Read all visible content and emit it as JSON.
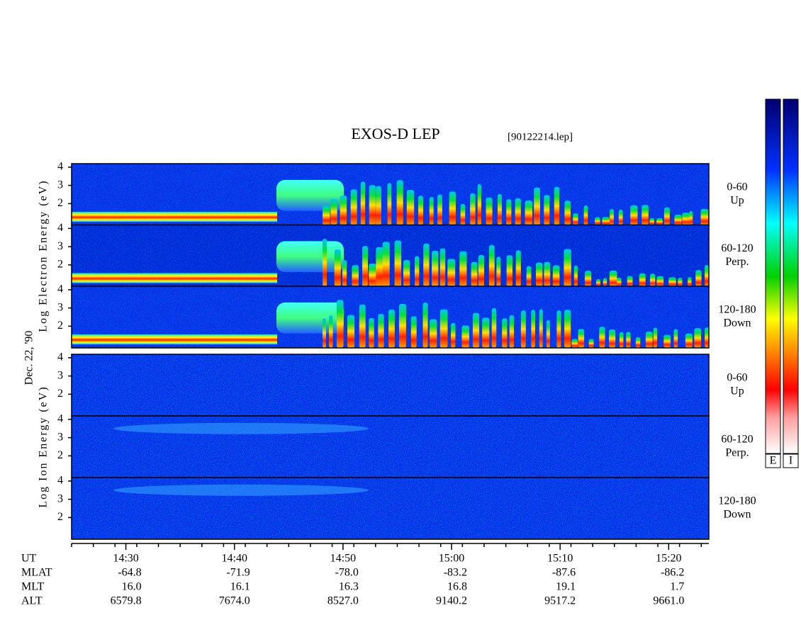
{
  "title": "EXOS-D LEP",
  "file": "[90122214.lep]",
  "date": "Dec. 22, '90",
  "energy_axis": {
    "ylim": [
      0.81,
      4.19
    ],
    "yticks": [
      2,
      3,
      4
    ]
  },
  "groups": [
    {
      "label": "Log Electron Energy (eV)",
      "panels": [
        {
          "range": "0-60",
          "direction": "Up"
        },
        {
          "range": "60-120",
          "direction": "Perp."
        },
        {
          "range": "120-180",
          "direction": "Down"
        }
      ]
    },
    {
      "label": "Log Ion Energy (eV)",
      "panels": [
        {
          "range": "0-60",
          "direction": "Up"
        },
        {
          "range": "60-120",
          "direction": "Perp."
        },
        {
          "range": "120-180",
          "direction": "Down"
        }
      ]
    }
  ],
  "time_axis": {
    "name": "UT",
    "xlim": [
      865,
      923.7
    ],
    "xticks": [
      {
        "value": 870,
        "label": "14:30"
      },
      {
        "value": 880,
        "label": "14:40"
      },
      {
        "value": 890,
        "label": "14:50"
      },
      {
        "value": 900,
        "label": "15:00"
      },
      {
        "value": 910,
        "label": "15:10"
      },
      {
        "value": 920,
        "label": "15:20"
      }
    ]
  },
  "ephemeris": [
    {
      "name": "MLAT",
      "values": [
        "-64.8",
        "-71.9",
        "-78.0",
        "-83.2",
        "-87.6",
        "-86.2"
      ]
    },
    {
      "name": "MLT",
      "values": [
        "16.0",
        "16.1",
        "16.3",
        "16.8",
        "19.1",
        "1.7"
      ]
    },
    {
      "name": "ALT",
      "values": [
        "6579.8",
        "7674.0",
        "8527.0",
        "9140.2",
        "9517.2",
        "9661.0"
      ]
    }
  ],
  "colorbars": [
    "E",
    "I"
  ]
}
